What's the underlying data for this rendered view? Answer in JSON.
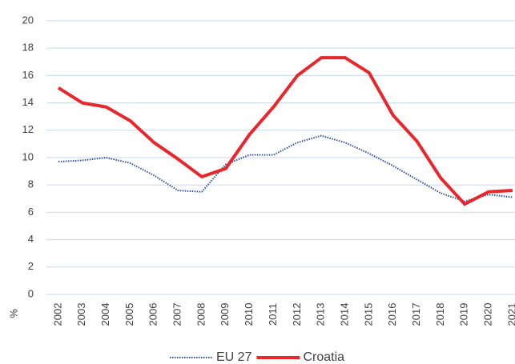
{
  "chart_data": {
    "type": "line",
    "ylabel": "%",
    "categories": [
      "2002",
      "2003",
      "2004",
      "2005",
      "2006",
      "2007",
      "2008",
      "2009",
      "2010",
      "2011",
      "2012",
      "2013",
      "2014",
      "2015",
      "2016",
      "2017",
      "2018",
      "2019",
      "2020",
      "2021"
    ],
    "series": [
      {
        "name": "EU 27",
        "color": "#2f4f9a",
        "dash": "dotted",
        "values": [
          9.7,
          9.8,
          10.0,
          9.6,
          8.7,
          7.6,
          7.5,
          9.5,
          10.2,
          10.2,
          11.1,
          11.6,
          11.1,
          10.3,
          9.4,
          8.4,
          7.4,
          6.8,
          7.3,
          7.1
        ]
      },
      {
        "name": "Croatia",
        "color": "#e8262b",
        "dash": "solid",
        "values": [
          15.1,
          14.0,
          13.7,
          12.7,
          11.1,
          9.9,
          8.6,
          9.2,
          11.7,
          13.7,
          16.0,
          17.3,
          17.3,
          16.2,
          13.1,
          11.2,
          8.5,
          6.6,
          7.5,
          7.6
        ]
      }
    ],
    "ylim": [
      0,
      20
    ],
    "yticks": [
      0,
      2,
      4,
      6,
      8,
      10,
      12,
      14,
      16,
      18,
      20
    ],
    "grid": true,
    "legend": "bottom"
  }
}
